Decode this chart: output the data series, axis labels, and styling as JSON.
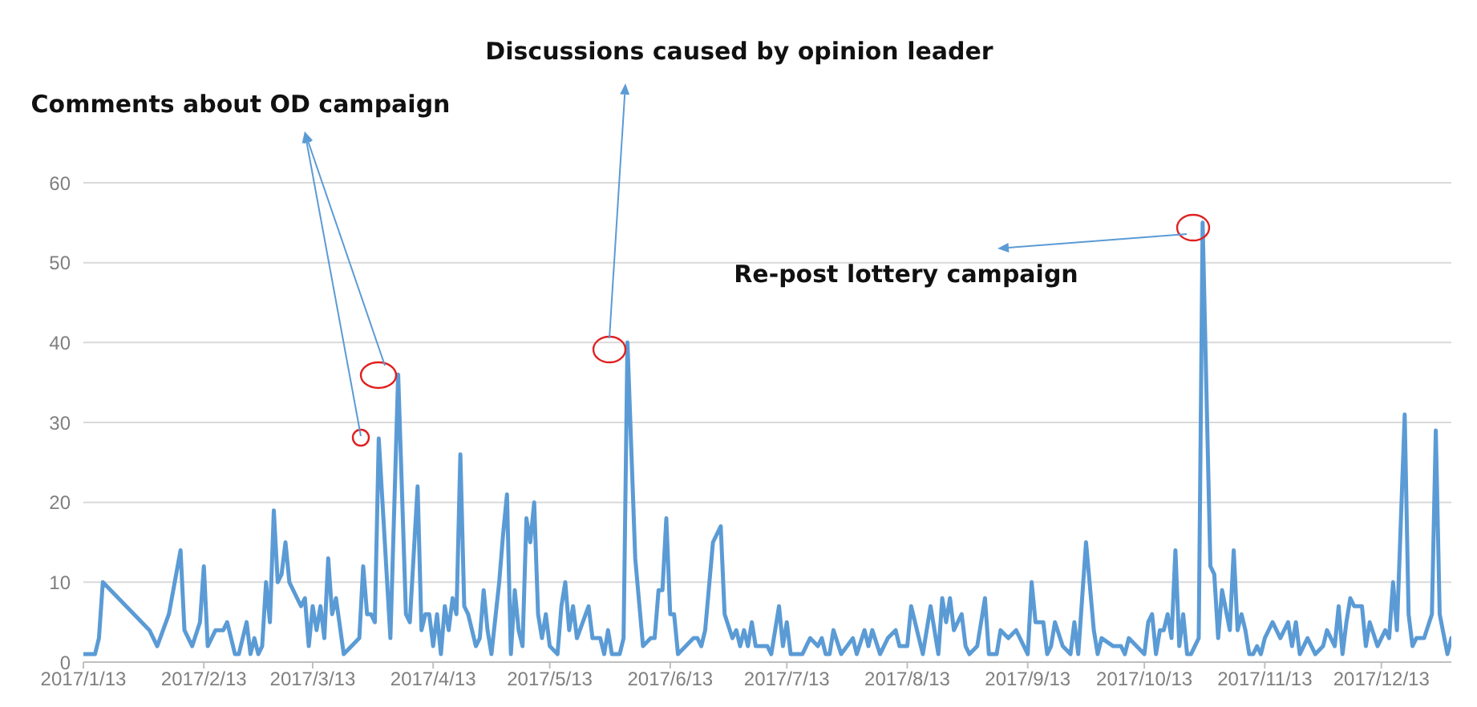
{
  "chart_data": {
    "type": "line",
    "x": [
      "2017-01-13",
      "2017-01-16",
      "2017-01-17",
      "2017-01-18",
      "2017-01-30",
      "2017-02-01",
      "2017-02-04",
      "2017-02-07",
      "2017-02-08",
      "2017-02-10",
      "2017-02-12",
      "2017-02-13",
      "2017-02-14",
      "2017-02-16",
      "2017-02-18",
      "2017-02-19",
      "2017-02-21",
      "2017-02-22",
      "2017-02-24",
      "2017-02-25",
      "2017-02-26",
      "2017-02-27",
      "2017-02-28",
      "2017-03-01",
      "2017-03-02",
      "2017-03-03",
      "2017-03-04",
      "2017-03-05",
      "2017-03-06",
      "2017-03-07",
      "2017-03-10",
      "2017-03-11",
      "2017-03-12",
      "2017-03-13",
      "2017-03-14",
      "2017-03-15",
      "2017-03-16",
      "2017-03-17",
      "2017-03-18",
      "2017-03-19",
      "2017-03-21",
      "2017-03-25",
      "2017-03-26",
      "2017-03-27",
      "2017-03-28",
      "2017-03-29",
      "2017-03-30",
      "2017-04-02",
      "2017-04-04",
      "2017-04-06",
      "2017-04-07",
      "2017-04-09",
      "2017-04-10",
      "2017-04-11",
      "2017-04-12",
      "2017-04-13",
      "2017-04-14",
      "2017-04-15",
      "2017-04-16",
      "2017-04-17",
      "2017-04-18",
      "2017-04-19",
      "2017-04-20",
      "2017-04-21",
      "2017-04-22",
      "2017-04-24",
      "2017-04-25",
      "2017-04-26",
      "2017-04-27",
      "2017-04-28",
      "2017-04-30",
      "2017-05-01",
      "2017-05-02",
      "2017-05-03",
      "2017-05-04",
      "2017-05-05",
      "2017-05-06",
      "2017-05-07",
      "2017-05-08",
      "2017-05-09",
      "2017-05-10",
      "2017-05-11",
      "2017-05-12",
      "2017-05-13",
      "2017-05-15",
      "2017-05-16",
      "2017-05-17",
      "2017-05-18",
      "2017-05-19",
      "2017-05-20",
      "2017-05-23",
      "2017-05-24",
      "2017-05-26",
      "2017-05-27",
      "2017-05-28",
      "2017-05-29",
      "2017-05-31",
      "2017-06-01",
      "2017-06-02",
      "2017-06-04",
      "2017-06-06",
      "2017-06-08",
      "2017-06-09",
      "2017-06-10",
      "2017-06-11",
      "2017-06-12",
      "2017-06-13",
      "2017-06-14",
      "2017-06-15",
      "2017-06-17",
      "2017-06-19",
      "2017-06-20",
      "2017-06-21",
      "2017-06-22",
      "2017-06-24",
      "2017-06-26",
      "2017-06-27",
      "2017-06-29",
      "2017-06-30",
      "2017-07-01",
      "2017-07-02",
      "2017-07-03",
      "2017-07-04",
      "2017-07-05",
      "2017-07-08",
      "2017-07-09",
      "2017-07-11",
      "2017-07-12",
      "2017-07-13",
      "2017-07-14",
      "2017-07-17",
      "2017-07-18",
      "2017-07-19",
      "2017-07-21",
      "2017-07-22",
      "2017-07-23",
      "2017-07-24",
      "2017-07-25",
      "2017-07-27",
      "2017-07-30",
      "2017-07-31",
      "2017-08-02",
      "2017-08-03",
      "2017-08-04",
      "2017-08-06",
      "2017-08-08",
      "2017-08-10",
      "2017-08-11",
      "2017-08-13",
      "2017-08-14",
      "2017-08-16",
      "2017-08-17",
      "2017-08-19",
      "2017-08-21",
      "2017-08-22",
      "2017-08-23",
      "2017-08-24",
      "2017-08-25",
      "2017-08-27",
      "2017-08-28",
      "2017-08-29",
      "2017-08-31",
      "2017-09-02",
      "2017-09-03",
      "2017-09-05",
      "2017-09-06",
      "2017-09-08",
      "2017-09-10",
      "2017-09-12",
      "2017-09-13",
      "2017-09-14",
      "2017-09-15",
      "2017-09-17",
      "2017-09-18",
      "2017-09-19",
      "2017-09-20",
      "2017-09-22",
      "2017-09-24",
      "2017-09-25",
      "2017-09-26",
      "2017-09-28",
      "2017-09-30",
      "2017-10-01",
      "2017-10-02",
      "2017-10-05",
      "2017-10-07",
      "2017-10-08",
      "2017-10-09",
      "2017-10-11",
      "2017-10-13",
      "2017-10-14",
      "2017-10-15",
      "2017-10-16",
      "2017-10-17",
      "2017-10-18",
      "2017-10-19",
      "2017-10-20",
      "2017-10-21",
      "2017-10-22",
      "2017-10-23",
      "2017-10-24",
      "2017-10-25",
      "2017-10-27",
      "2017-10-28",
      "2017-10-30",
      "2017-10-31",
      "2017-11-01",
      "2017-11-02",
      "2017-11-04",
      "2017-11-05",
      "2017-11-06",
      "2017-11-07",
      "2017-11-08",
      "2017-11-09",
      "2017-11-10",
      "2017-11-11",
      "2017-11-12",
      "2017-11-13",
      "2017-11-15",
      "2017-11-16",
      "2017-11-17",
      "2017-11-19",
      "2017-11-20",
      "2017-11-21",
      "2017-11-22",
      "2017-11-24",
      "2017-11-26",
      "2017-11-28",
      "2017-11-29",
      "2017-12-01",
      "2017-12-02",
      "2017-12-03",
      "2017-12-04",
      "2017-12-05",
      "2017-12-06",
      "2017-12-08",
      "2017-12-09",
      "2017-12-10",
      "2017-12-12",
      "2017-12-14",
      "2017-12-15",
      "2017-12-16",
      "2017-12-17",
      "2017-12-19",
      "2017-12-20",
      "2017-12-21",
      "2017-12-22",
      "2017-12-24",
      "2017-12-26",
      "2017-12-27",
      "2017-12-28",
      "2017-12-30",
      "2017-12-31"
    ],
    "series": [
      {
        "color": "#5b9bd5",
        "values": [
          1,
          1,
          3,
          10,
          4,
          2,
          6,
          14,
          4,
          2,
          5,
          12,
          2,
          4,
          4,
          5,
          1,
          1,
          5,
          1,
          3,
          1,
          2,
          10,
          5,
          19,
          10,
          11,
          15,
          10,
          7,
          8,
          2,
          7,
          4,
          7,
          3,
          13,
          6,
          8,
          1,
          3,
          12,
          6,
          6,
          5,
          28,
          3,
          36,
          6,
          5,
          22,
          4,
          6,
          6,
          2,
          6,
          1,
          7,
          4,
          8,
          6,
          26,
          7,
          6,
          2,
          3,
          9,
          4,
          1,
          10,
          16,
          21,
          1,
          9,
          4,
          2,
          18,
          15,
          20,
          6,
          3,
          6,
          2,
          1,
          7,
          10,
          4,
          7,
          3,
          7,
          3,
          3,
          1,
          4,
          1,
          1,
          3,
          40,
          13,
          2,
          3,
          3,
          9,
          9,
          18,
          6,
          6,
          1,
          2,
          3,
          3,
          2,
          4,
          15,
          17,
          6,
          3,
          4,
          2,
          4,
          2,
          5,
          2,
          2,
          1,
          7,
          2,
          5,
          1,
          1,
          2,
          3,
          2,
          3,
          1,
          1,
          4,
          1,
          3,
          1,
          4,
          2,
          4,
          1,
          3,
          4,
          2,
          2,
          7,
          3,
          1,
          7,
          1,
          8,
          5,
          8,
          4,
          6,
          2,
          1,
          2,
          8,
          1,
          1,
          4,
          3,
          4,
          2,
          1,
          10,
          5,
          5,
          1,
          2,
          5,
          2,
          1,
          5,
          1,
          15,
          4,
          1,
          3,
          2,
          2,
          1,
          3,
          2,
          1,
          5,
          6,
          1,
          4,
          4,
          6,
          3,
          14,
          2,
          6,
          1,
          1,
          3,
          55,
          12,
          11,
          3,
          9,
          4,
          14,
          4,
          6,
          4,
          1,
          1,
          2,
          1,
          3,
          5,
          4,
          3,
          5,
          2,
          5,
          1,
          3,
          1,
          2,
          4,
          2,
          7,
          1,
          5,
          8,
          7,
          7,
          2,
          5,
          2,
          4,
          3,
          10,
          4,
          31,
          6,
          2,
          3,
          3,
          6,
          29,
          6,
          1,
          3
        ]
      }
    ],
    "xlim": [
      "2017-01-13",
      "2017-12-31"
    ],
    "xticks": [
      {
        "value": "2017-01-13",
        "label": "2017/1/13"
      },
      {
        "value": "2017-02-13",
        "label": "2017/2/13"
      },
      {
        "value": "2017-03-13",
        "label": "2017/3/13"
      },
      {
        "value": "2017-04-13",
        "label": "2017/4/13"
      },
      {
        "value": "2017-05-13",
        "label": "2017/5/13"
      },
      {
        "value": "2017-06-13",
        "label": "2017/6/13"
      },
      {
        "value": "2017-07-13",
        "label": "2017/7/13"
      },
      {
        "value": "2017-08-13",
        "label": "2017/8/13"
      },
      {
        "value": "2017-09-13",
        "label": "2017/9/13"
      },
      {
        "value": "2017-10-13",
        "label": "2017/10/13"
      },
      {
        "value": "2017-11-13",
        "label": "2017/11/13"
      },
      {
        "value": "2017-12-13",
        "label": "2017/12/13"
      }
    ],
    "ylim": [
      0,
      60
    ],
    "yticks": [
      0,
      10,
      20,
      30,
      40,
      50,
      60
    ],
    "grid": "y",
    "marker": "none",
    "line_style": "solid",
    "annotations": [
      "Comments about OD campaign",
      "Discussions caused by opinion leader",
      "Re-post lottery campaign"
    ]
  }
}
